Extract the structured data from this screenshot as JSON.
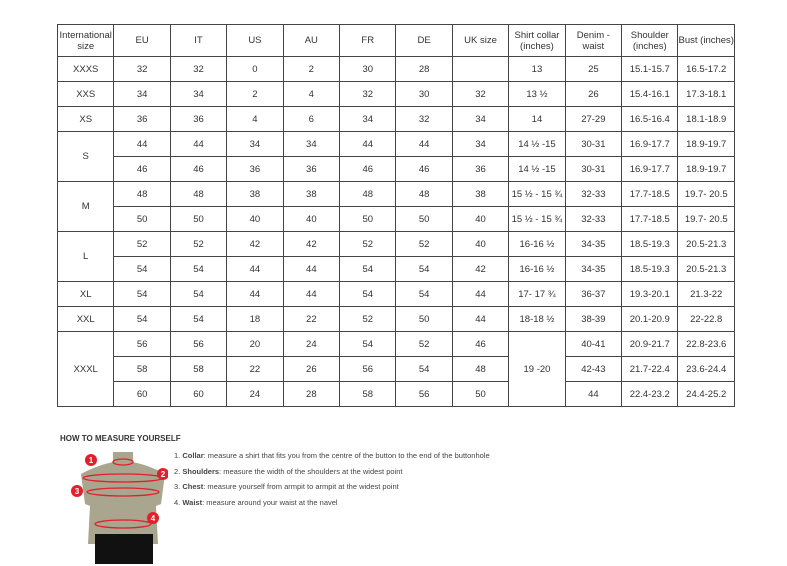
{
  "table": {
    "headers": [
      "International size",
      "EU",
      "IT",
      "US",
      "AU",
      "FR",
      "DE",
      "UK size",
      "Shirt collar (inches)",
      "Denim - waist",
      "Shoulder (inches)",
      "Bust (inches)"
    ],
    "groups": [
      {
        "size": "XXXS",
        "rows": [
          [
            "32",
            "32",
            "0",
            "2",
            "30",
            "28",
            "",
            "13",
            "25",
            "15.1-15.7",
            "16.5-17.2"
          ]
        ]
      },
      {
        "size": "XXS",
        "rows": [
          [
            "34",
            "34",
            "2",
            "4",
            "32",
            "30",
            "32",
            "13 ½",
            "26",
            "15.4-16.1",
            "17.3-18.1"
          ]
        ]
      },
      {
        "size": "XS",
        "rows": [
          [
            "36",
            "36",
            "4",
            "6",
            "34",
            "32",
            "34",
            "14",
            "27-29",
            "16.5-16.4",
            "18.1-18.9"
          ]
        ]
      },
      {
        "size": "S",
        "rows": [
          [
            "44",
            "44",
            "34",
            "34",
            "44",
            "44",
            "34",
            "14 ½ -15",
            "30-31",
            "16.9-17.7",
            "18.9-19.7"
          ],
          [
            "46",
            "46",
            "36",
            "36",
            "46",
            "46",
            "36",
            "14 ½ -15",
            "30-31",
            "16.9-17.7",
            "18.9-19.7"
          ]
        ]
      },
      {
        "size": "M",
        "rows": [
          [
            "48",
            "48",
            "38",
            "38",
            "48",
            "48",
            "38",
            "15 ½ - 15 ¾",
            "32-33",
            "17.7-18.5",
            "19.7- 20.5"
          ],
          [
            "50",
            "50",
            "40",
            "40",
            "50",
            "50",
            "40",
            "15 ½ - 15 ¾",
            "32-33",
            "17.7-18.5",
            "19.7- 20.5"
          ]
        ]
      },
      {
        "size": "L",
        "rows": [
          [
            "52",
            "52",
            "42",
            "42",
            "52",
            "52",
            "40",
            "16-16 ½",
            "34-35",
            "18.5-19.3",
            "20.5-21.3"
          ],
          [
            "54",
            "54",
            "44",
            "44",
            "54",
            "54",
            "42",
            "16-16 ½",
            "34-35",
            "18.5-19.3",
            "20.5-21.3"
          ]
        ]
      },
      {
        "size": "XL",
        "rows": [
          [
            "54",
            "54",
            "44",
            "44",
            "54",
            "54",
            "44",
            "17- 17 ¾",
            "36-37",
            "19.3-20.1",
            "21.3-22"
          ]
        ]
      },
      {
        "size": "XXL",
        "rows": [
          [
            "54",
            "54",
            "18",
            "22",
            "52",
            "50",
            "44",
            "18-18 ½",
            "38-39",
            "20.1-20.9",
            "22-22.8"
          ]
        ]
      },
      {
        "size": "XXXL",
        "collar": "19 -20",
        "rows": [
          [
            "56",
            "56",
            "20",
            "24",
            "54",
            "52",
            "46",
            "",
            "40-41",
            "20.9-21.7",
            "22.8-23.6"
          ],
          [
            "58",
            "58",
            "22",
            "26",
            "56",
            "54",
            "48",
            "",
            "42-43",
            "21.7-22.4",
            "23.6-24.4"
          ],
          [
            "60",
            "60",
            "24",
            "28",
            "58",
            "56",
            "50",
            "",
            "44",
            "22.4-23.2",
            "24.4-25.2"
          ]
        ]
      }
    ]
  },
  "howto": {
    "title": "HOW TO MEASURE YOURSELF",
    "steps": [
      {
        "n": "1.",
        "b": "Collar",
        "t": ": measure a shirt that fits you from the centre of the button to the end of the buttonhole"
      },
      {
        "n": "2.",
        "b": "Shoulders",
        "t": ": measure the width of the shoulders at the widest point"
      },
      {
        "n": "3.",
        "b": "Chest",
        "t": ": measure yourself from armpit to armpit at the widest point"
      },
      {
        "n": "4.",
        "b": "Waist",
        "t": ": measure around your waist at the navel"
      }
    ],
    "markers": [
      "1",
      "2",
      "3",
      "4"
    ]
  },
  "colors": {
    "marker": "#e0202a",
    "skin": "#a9a58e"
  }
}
